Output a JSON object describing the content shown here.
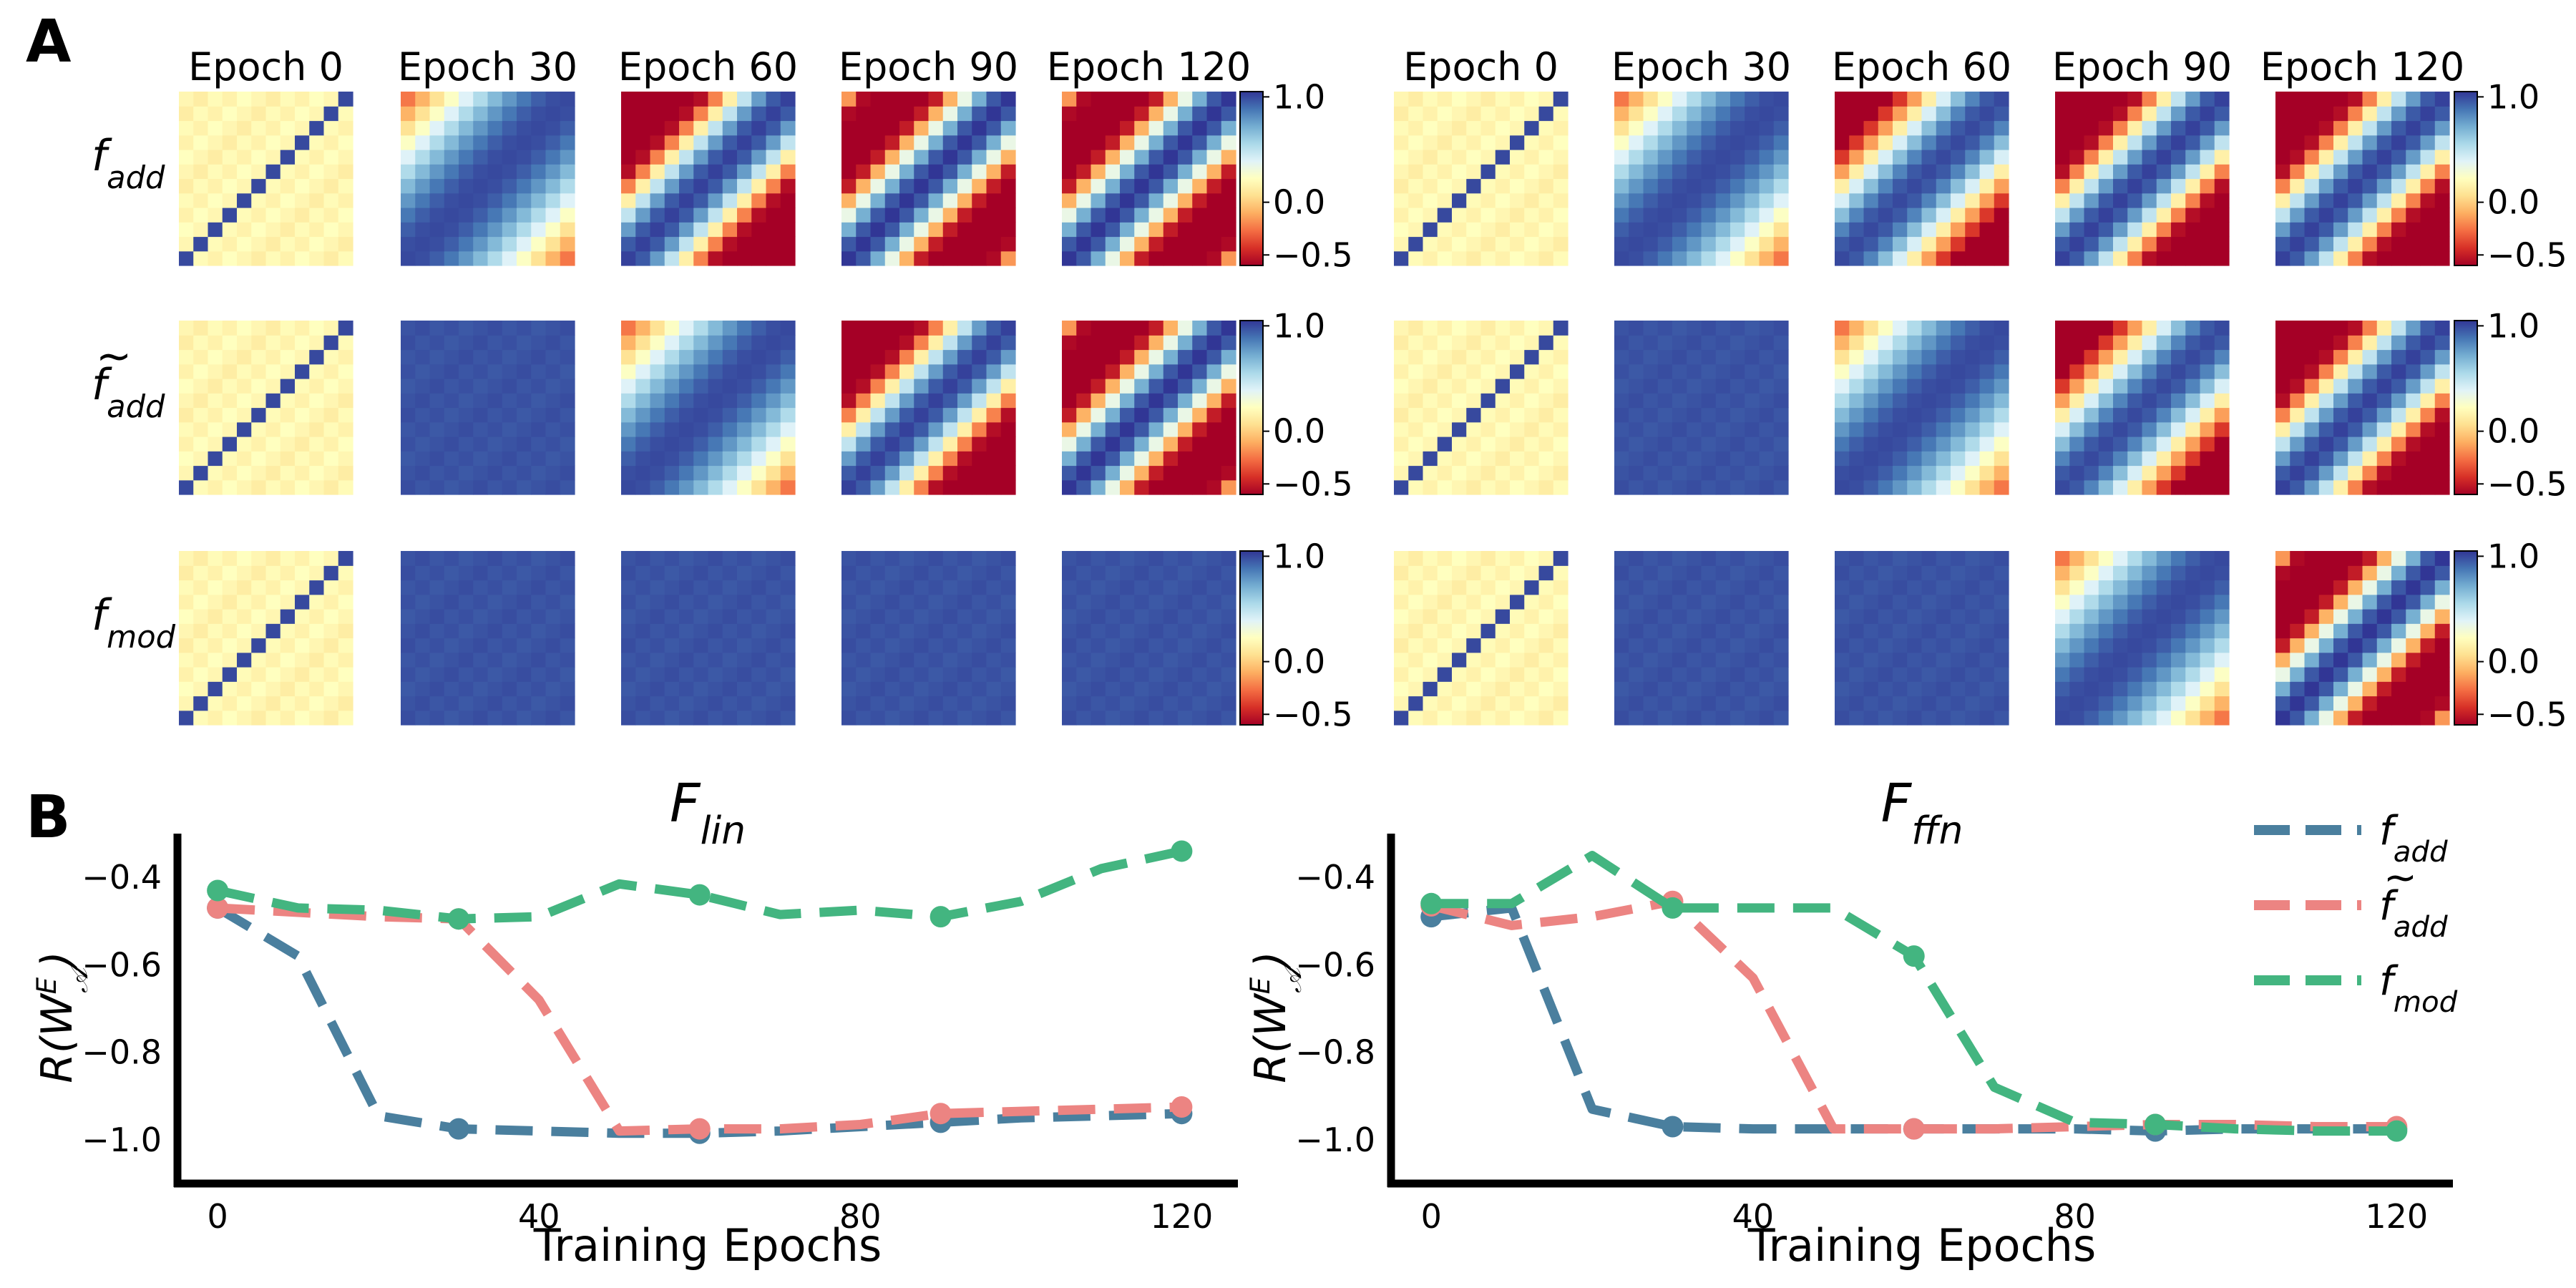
{
  "panel_labels": {
    "a": "A",
    "b": "B"
  },
  "panel_a": {
    "groups": [
      "F_lin",
      "F_ffn"
    ],
    "epoch_labels": [
      "Epoch 0",
      "Epoch 30",
      "Epoch 60",
      "Epoch 90",
      "Epoch 120"
    ],
    "row_labels": [
      {
        "base": "f",
        "sub": "add",
        "tilde": false
      },
      {
        "base": "f",
        "sub": "add",
        "tilde": true
      },
      {
        "base": "f",
        "sub": "mod",
        "tilde": false
      }
    ],
    "colorbar": {
      "cmap": "RdYlBu",
      "vmin": -0.6,
      "vmax": 1.05,
      "tick_labels": [
        "1.0",
        "0.0",
        "−0.5"
      ],
      "tick_values": [
        1.0,
        0.0,
        -0.5
      ]
    },
    "heatmap_size": 12,
    "regime_by_group_row_epoch": {
      "F_lin": [
        [
          "id",
          "smooth",
          "bands2",
          "bands3",
          "bands3"
        ],
        [
          "id",
          "flat",
          "smooth",
          "bands2",
          "bands3"
        ],
        [
          "id",
          "flat",
          "flat",
          "flat",
          "flat"
        ]
      ],
      "F_ffn": [
        [
          "id",
          "smooth",
          "bands1",
          "bands2",
          "bands2"
        ],
        [
          "id",
          "flat",
          "smooth",
          "bands1",
          "bands2"
        ],
        [
          "id",
          "flat",
          "flat",
          "smooth",
          "bands3"
        ]
      ]
    }
  },
  "chart_data": [
    {
      "type": "line",
      "title": {
        "base": "F",
        "sub": "lin"
      },
      "xlabel": "Training Epochs",
      "ylabel": "R(W_A^E)",
      "x": [
        0,
        10,
        20,
        30,
        40,
        50,
        60,
        70,
        80,
        90,
        100,
        110,
        120
      ],
      "xlim": [
        -5,
        127
      ],
      "ylim": [
        -1.1,
        -0.3
      ],
      "xticks": [
        0,
        40,
        80,
        120
      ],
      "xtick_labels": [
        "0",
        "40",
        "80",
        "120"
      ],
      "yticks": [
        -1.0,
        -0.8,
        -0.6,
        -0.4
      ],
      "ytick_labels": [
        "−1.0",
        "−0.8",
        "−0.6",
        "−0.4"
      ],
      "marker_x": [
        0,
        30,
        60,
        90,
        120
      ],
      "series": [
        {
          "name": "f_add",
          "color": "#4a7f9e",
          "values": [
            -0.47,
            -0.58,
            -0.945,
            -0.975,
            -0.98,
            -0.985,
            -0.985,
            -0.98,
            -0.97,
            -0.96,
            -0.95,
            -0.945,
            -0.94
          ]
        },
        {
          "name": "f~_add",
          "color": "#ec8482",
          "values": [
            -0.47,
            -0.48,
            -0.49,
            -0.495,
            -0.68,
            -0.98,
            -0.975,
            -0.975,
            -0.965,
            -0.94,
            -0.935,
            -0.93,
            -0.925
          ]
        },
        {
          "name": "f_mod",
          "color": "#43b580",
          "values": [
            -0.43,
            -0.47,
            -0.475,
            -0.495,
            -0.49,
            -0.415,
            -0.44,
            -0.485,
            -0.475,
            -0.49,
            -0.455,
            -0.38,
            -0.34
          ]
        }
      ]
    },
    {
      "type": "line",
      "title": {
        "base": "F",
        "sub": "ffn"
      },
      "xlabel": "Training Epochs",
      "ylabel": "R(W_A^E)",
      "x": [
        0,
        10,
        20,
        30,
        40,
        50,
        60,
        70,
        80,
        90,
        100,
        110,
        120
      ],
      "xlim": [
        -5,
        127
      ],
      "ylim": [
        -1.1,
        -0.3
      ],
      "xticks": [
        0,
        40,
        80,
        120
      ],
      "xtick_labels": [
        "0",
        "40",
        "80",
        "120"
      ],
      "yticks": [
        -1.0,
        -0.8,
        -0.6,
        -0.4
      ],
      "ytick_labels": [
        "−1.0",
        "−0.8",
        "−0.6",
        "−0.4"
      ],
      "marker_x": [
        0,
        30,
        60,
        90,
        120
      ],
      "series": [
        {
          "name": "f_add",
          "color": "#4a7f9e",
          "values": [
            -0.49,
            -0.47,
            -0.93,
            -0.97,
            -0.975,
            -0.975,
            -0.975,
            -0.975,
            -0.975,
            -0.98,
            -0.975,
            -0.975,
            -0.975
          ]
        },
        {
          "name": "f~_add",
          "color": "#ec8482",
          "values": [
            -0.465,
            -0.51,
            -0.49,
            -0.455,
            -0.63,
            -0.975,
            -0.975,
            -0.975,
            -0.97,
            -0.965,
            -0.965,
            -0.97,
            -0.97
          ]
        },
        {
          "name": "f_mod",
          "color": "#43b580",
          "values": [
            -0.46,
            -0.46,
            -0.35,
            -0.47,
            -0.47,
            -0.47,
            -0.58,
            -0.88,
            -0.96,
            -0.965,
            -0.975,
            -0.98,
            -0.98
          ]
        }
      ]
    }
  ],
  "legend": [
    {
      "base": "f",
      "sub": "add",
      "tilde": false,
      "color": "#4a7f9e"
    },
    {
      "base": "f",
      "sub": "add",
      "tilde": true,
      "color": "#ec8482"
    },
    {
      "base": "f",
      "sub": "mod",
      "tilde": false,
      "color": "#43b580"
    }
  ]
}
